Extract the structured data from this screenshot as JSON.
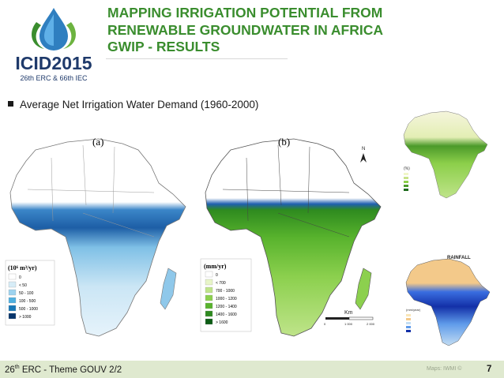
{
  "header": {
    "logo_text": "ICID2015",
    "logo_subtitle": "26th ERC & 66th IEC",
    "title_lines": [
      "MAPPING IRRIGATION POTENTIAL FROM",
      "RENEWABLE GROUNDWATER IN AFRICA",
      "GWIP - RESULTS"
    ]
  },
  "bullet": {
    "text": "Average Net Irrigation Water Demand (1960-2000)"
  },
  "maps": {
    "a": {
      "label": "(a)",
      "legend_title": "(10⁶ m³/yr)",
      "legend_items": [
        "0",
        "< 50",
        "50 - 100",
        "100 - 500",
        "500 - 1000",
        "> 1000"
      ],
      "legend_colors": [
        "#ffffff",
        "#d6ecf7",
        "#9dd3ef",
        "#4fb0e0",
        "#1878b8",
        "#07346a"
      ]
    },
    "b": {
      "label": "(b)",
      "legend_title": "(mm/yr)",
      "legend_items": [
        "0",
        "< 700",
        "700 - 1000",
        "1000 - 1200",
        "1200 - 1400",
        "1400 - 1600",
        "> 1600"
      ],
      "legend_colors": [
        "#ffffff",
        "#e8f5c8",
        "#bfe48a",
        "#8cd04e",
        "#58b32d",
        "#2e8a1f",
        "#0c5c14"
      ],
      "scale_label": "Km",
      "scale_ticks": [
        "0",
        "1 000",
        "2 000"
      ],
      "north": "N"
    },
    "c": {
      "legend_title": "(%)"
    },
    "d": {
      "label": "RAINFALL",
      "legend_title": "(mm/year)"
    }
  },
  "footer": {
    "left_text": "26",
    "left_sup": "th",
    "left_rest": " ERC - Theme GOUV 2/2",
    "credit": "Maps: IWMI ©",
    "page": "7"
  }
}
